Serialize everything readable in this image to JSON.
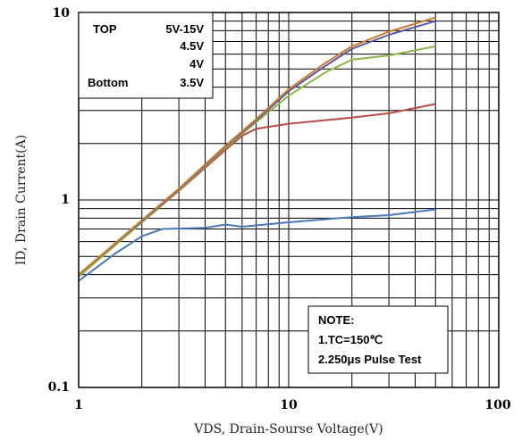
{
  "chart_data": {
    "type": "line",
    "xscale": "log",
    "yscale": "log",
    "xlim": [
      1,
      100
    ],
    "ylim": [
      0.1,
      10
    ],
    "xlabel": "VDS, Drain-Sourse Voltage(V)",
    "ylabel": "ID, Drain Current(A)",
    "x_ticks": [
      "1",
      "10",
      "100"
    ],
    "y_ticks": [
      "0.1",
      "1",
      "10"
    ],
    "grid": true,
    "legend": {
      "placement": "top-left",
      "rows": [
        {
          "left": "TOP",
          "right": "5V-15V"
        },
        {
          "left": "",
          "right": "4.5V"
        },
        {
          "left": "",
          "right": "4V"
        },
        {
          "left": "Bottom",
          "right": "3.5V"
        }
      ]
    },
    "note": {
      "placement": "bottom-right",
      "lines": [
        "NOTE:",
        "1.TC=150℃",
        "2.250μs Pulse Test"
      ]
    },
    "series": [
      {
        "color": "#d07a2a",
        "x": [
          1,
          2,
          3,
          5,
          7,
          10,
          15,
          20,
          30,
          50
        ],
        "y": [
          0.4,
          0.78,
          1.15,
          1.95,
          2.7,
          3.9,
          5.4,
          6.6,
          7.9,
          9.4
        ]
      },
      {
        "color": "#5a5aa8",
        "x": [
          1,
          2,
          3,
          5,
          7,
          10,
          15,
          20,
          30,
          50
        ],
        "y": [
          0.4,
          0.77,
          1.14,
          1.93,
          2.65,
          3.8,
          5.2,
          6.4,
          7.6,
          9.0
        ]
      },
      {
        "color": "#8ab84a",
        "x": [
          1,
          2,
          3,
          5,
          7,
          10,
          15,
          20,
          30,
          50
        ],
        "y": [
          0.39,
          0.76,
          1.13,
          1.9,
          2.6,
          3.6,
          4.8,
          5.6,
          5.9,
          6.6
        ]
      },
      {
        "color": "#b84a4a",
        "x": [
          1,
          2,
          3,
          5,
          6,
          7,
          10,
          20,
          30,
          50
        ],
        "y": [
          0.39,
          0.76,
          1.12,
          1.85,
          2.2,
          2.4,
          2.55,
          2.75,
          2.9,
          3.25
        ]
      },
      {
        "color": "#4a78b8",
        "x": [
          1,
          1.5,
          2,
          2.5,
          4,
          5,
          6,
          10,
          20,
          30,
          50
        ],
        "y": [
          0.37,
          0.52,
          0.64,
          0.7,
          0.71,
          0.74,
          0.72,
          0.76,
          0.81,
          0.83,
          0.89
        ]
      }
    ]
  }
}
